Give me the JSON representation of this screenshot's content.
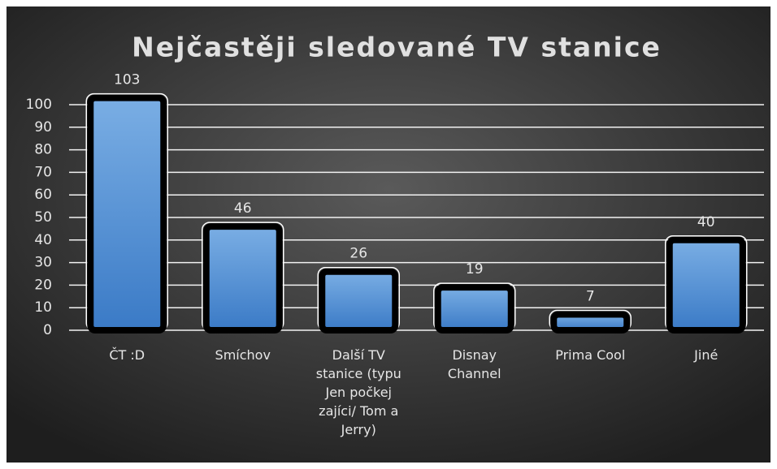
{
  "chart_data": {
    "type": "bar",
    "title": "Nejčastěji sledované TV stanice",
    "categories": [
      "ČT :D",
      "Smíchov",
      "Další TV stanice (typu Jen počkej zajíci/ Tom a Jerry)",
      "Disnay Channel",
      "Prima Cool",
      "Jiné"
    ],
    "values": [
      103,
      46,
      26,
      19,
      7,
      40
    ],
    "color": "#5b9bd5",
    "ylim": [
      0,
      100
    ],
    "yticks": [
      0,
      10,
      20,
      30,
      40,
      50,
      60,
      70,
      80,
      90,
      100
    ],
    "grid": true
  }
}
